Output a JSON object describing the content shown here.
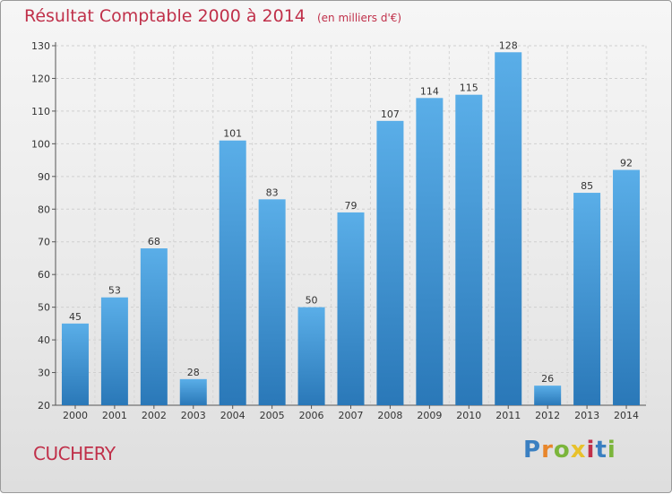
{
  "title": "Résultat Comptable 2000 à 2014",
  "unit": "(en milliers d'€)",
  "commune": "CUCHERY",
  "logo": "Proxiti",
  "colors": {
    "title": "#c0304a",
    "bar_top": "#5aaee8",
    "bar_bottom": "#2a78b8",
    "logo_letters": [
      "#3a7fc1",
      "#e8862b",
      "#7bb53b",
      "#e8c12b",
      "#c0304a",
      "#3a7fc1",
      "#7bb53b"
    ]
  },
  "chart_data": {
    "type": "bar",
    "title": "Résultat Comptable 2000 à 2014",
    "subtitle": "(en milliers d'€)",
    "categories": [
      "2000",
      "2001",
      "2002",
      "2003",
      "2004",
      "2005",
      "2006",
      "2007",
      "2008",
      "2009",
      "2010",
      "2011",
      "2012",
      "2013",
      "2014"
    ],
    "values": [
      45,
      53,
      68,
      28,
      101,
      83,
      50,
      79,
      107,
      114,
      115,
      128,
      26,
      85,
      92
    ],
    "ylim": [
      20,
      130
    ],
    "yticks": [
      20,
      30,
      40,
      50,
      60,
      70,
      80,
      90,
      100,
      110,
      120,
      130
    ],
    "grid": true,
    "data_labels": true
  }
}
